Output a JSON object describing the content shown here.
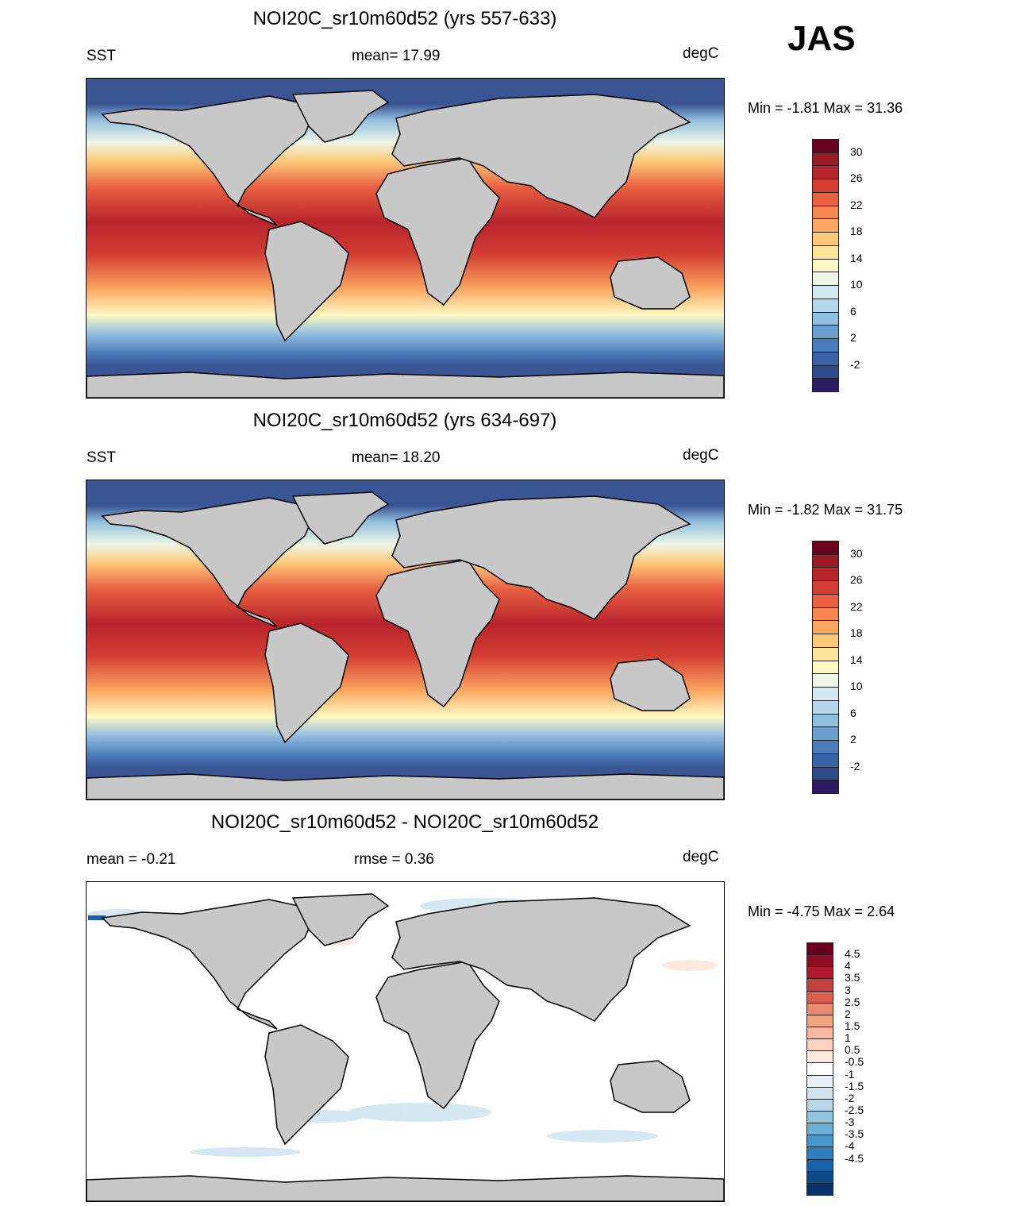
{
  "season": "JAS",
  "panels": [
    {
      "title": "NOI20C_sr10m60d52 (yrs 557-633)",
      "left": "SST",
      "center": "mean=  17.99",
      "right": "degC",
      "minmax": "Min =  -1.81 Max =  31.36",
      "colorbar": {
        "colors": [
          "#2b1a63",
          "#2f4a8f",
          "#3a62a8",
          "#4a7cbc",
          "#6b9ecf",
          "#93bfdf",
          "#b5d7ea",
          "#d3e9f1",
          "#eef6e6",
          "#fff8c2",
          "#fee59a",
          "#fdc979",
          "#fba862",
          "#f6874f",
          "#e96042",
          "#d43d32",
          "#b8242b",
          "#9c1a26",
          "#6a0222"
        ],
        "labels": [
          "30",
          "26",
          "22",
          "18",
          "14",
          "10",
          "6",
          "2",
          "-2"
        ]
      }
    },
    {
      "title": "NOI20C_sr10m60d52 (yrs 634-697)",
      "left": "SST",
      "center": "mean=  18.20",
      "right": "degC",
      "minmax": "Min =  -1.82 Max =  31.75",
      "colorbar": {
        "colors": [
          "#2b1a63",
          "#2f4a8f",
          "#3a62a8",
          "#4a7cbc",
          "#6b9ecf",
          "#93bfdf",
          "#b5d7ea",
          "#d3e9f1",
          "#eef6e6",
          "#fff8c2",
          "#fee59a",
          "#fdc979",
          "#fba862",
          "#f6874f",
          "#e96042",
          "#d43d32",
          "#b8242b",
          "#9c1a26",
          "#6a0222"
        ],
        "labels": [
          "30",
          "26",
          "22",
          "18",
          "14",
          "10",
          "6",
          "2",
          "-2"
        ]
      }
    },
    {
      "title": "NOI20C_sr10m60d52 - NOI20C_sr10m60d52",
      "left": "mean =  -0.21",
      "center": "rmse =   0.36",
      "right": "degC",
      "minmax": "Min =  -4.75 Max =   2.64",
      "colorbar": {
        "colors": [
          "#08306b",
          "#0c4a8a",
          "#1663a8",
          "#2f7fbc",
          "#4a98c9",
          "#6baed6",
          "#92c5de",
          "#b6d7e8",
          "#d1e5f0",
          "#e6f0f6",
          "#ffffff",
          "#fde9df",
          "#fcd3c0",
          "#f9b9a0",
          "#f4a582",
          "#e78a6e",
          "#d6604d",
          "#c53f3f",
          "#b2182b",
          "#8c0d25",
          "#67001f"
        ],
        "labels": [
          "4.5",
          "4",
          "3.5",
          "3",
          "2.5",
          "2",
          "1.5",
          "1",
          "0.5",
          "-0.5",
          "-1",
          "-1.5",
          "-2",
          "-2.5",
          "-3",
          "-3.5",
          "-4",
          "-4.5"
        ]
      }
    }
  ]
}
